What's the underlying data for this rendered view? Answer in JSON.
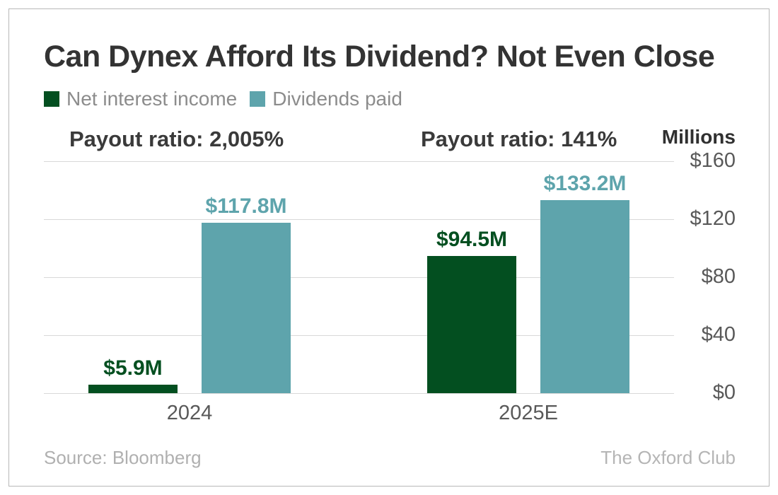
{
  "chart_data": {
    "type": "bar",
    "title": "Can Dynex Afford Its Dividend? Not Even Close",
    "categories": [
      "2024",
      "2025E"
    ],
    "series": [
      {
        "name": "Net interest income",
        "color": "#034f20",
        "values": [
          5.9,
          94.5
        ],
        "value_labels": [
          "$5.9M",
          "$94.5M"
        ]
      },
      {
        "name": "Dividends paid",
        "color": "#5ea4ac",
        "values": [
          117.8,
          133.2
        ],
        "value_labels": [
          "$117.8M",
          "$133.2M"
        ]
      }
    ],
    "annotations": [
      "Payout ratio: 2,005%",
      "Payout ratio: 141%"
    ],
    "ylabel": "Millions",
    "xlabel": "",
    "ylim": [
      0,
      160
    ],
    "yticks": [
      {
        "value": 160,
        "label": "$160"
      },
      {
        "value": 120,
        "label": "$120"
      },
      {
        "value": 80,
        "label": "$80"
      },
      {
        "value": 40,
        "label": "$40"
      },
      {
        "value": 0,
        "label": "$0"
      }
    ],
    "grid": true,
    "legend_position": "top-left"
  },
  "footer": {
    "source": "Source: Bloomberg",
    "attribution": "The Oxford Club"
  }
}
